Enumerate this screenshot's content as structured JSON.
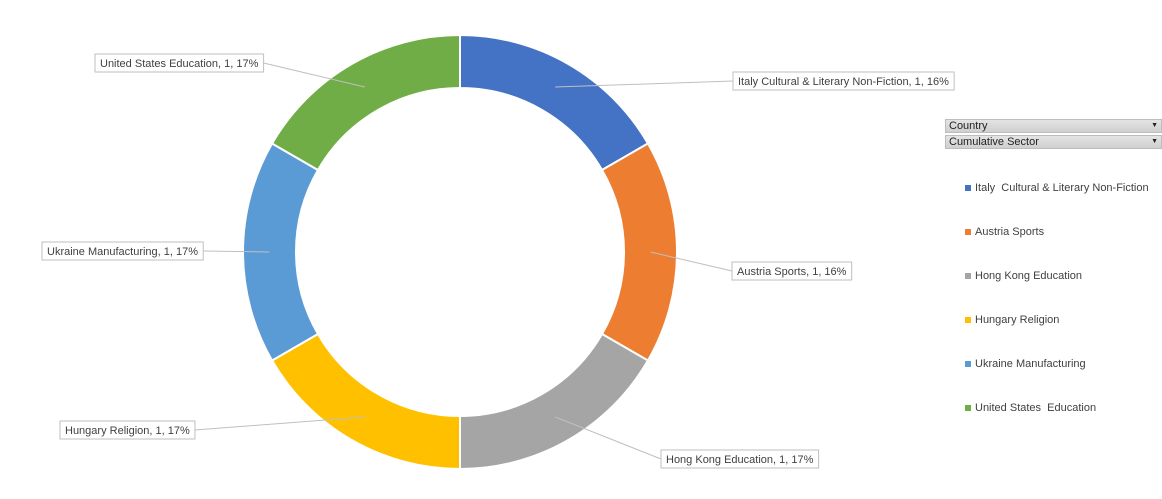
{
  "chart_data": {
    "type": "pie",
    "donut": true,
    "legend_position": "right",
    "categories": [
      "Italy  Cultural & Literary Non-Fiction",
      "Austria Sports",
      "Hong Kong Education",
      "Hungary Religion",
      "Ukraine Manufacturing",
      "United States  Education"
    ],
    "values": [
      1,
      1,
      1,
      1,
      1,
      1
    ],
    "percent_labels": [
      "16%",
      "16%",
      "17%",
      "17%",
      "17%",
      "17%"
    ],
    "data_labels": [
      "Italy  Cultural & Literary Non-Fiction, 1, 16%",
      "Austria Sports, 1, 16%",
      "Hong Kong Education, 1, 17%",
      "Hungary Religion, 1, 17%",
      "Ukraine Manufacturing, 1, 17%",
      "United States  Education, 1, 17%"
    ],
    "colors": [
      "#4472C4",
      "#ED7D31",
      "#A5A5A5",
      "#FFC000",
      "#5B9BD5",
      "#70AD47"
    ]
  },
  "fields": {
    "country_label": "Country",
    "sector_label": "Cumulative Sector",
    "dropdown_icon": "triangle-down"
  }
}
